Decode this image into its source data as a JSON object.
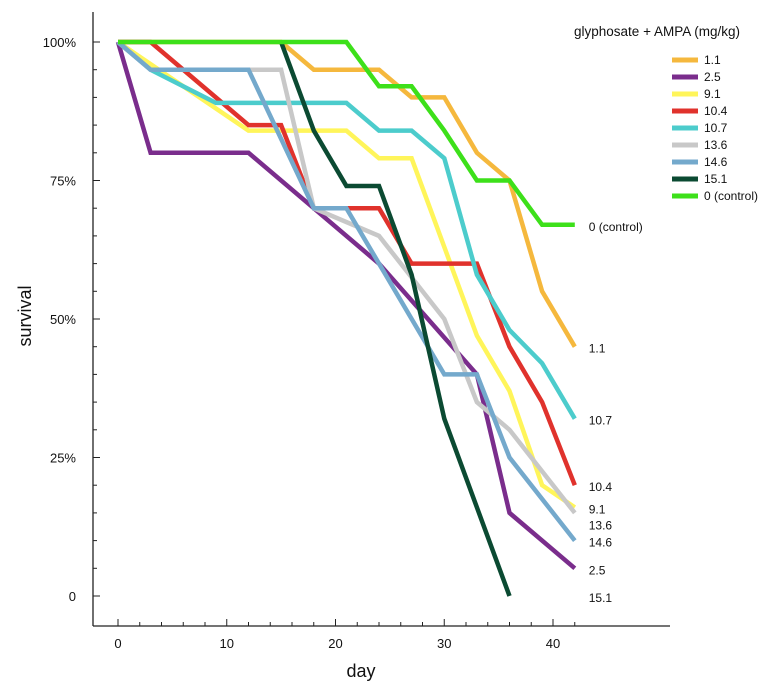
{
  "chart_data": {
    "type": "line",
    "xlabel": "day",
    "ylabel": "survival",
    "xlim": [
      -2.5,
      44.5
    ],
    "ylim": [
      0,
      104
    ],
    "x_ticks": [
      0,
      10,
      20,
      30,
      40
    ],
    "x_tick_labels": [
      "0",
      "10",
      "20",
      "30",
      "40"
    ],
    "y_ticks": [
      0,
      25,
      50,
      75,
      100
    ],
    "y_tick_labels": [
      "0",
      "25%",
      "50%",
      "75%",
      "100%"
    ],
    "legend_title": "glyphosate + AMPA (mg/kg)",
    "legend_position": "top-right",
    "grid": false,
    "series": [
      {
        "name": "1.1",
        "end_label": "1.1",
        "color": "#f5b83d",
        "x": [
          0,
          15,
          18,
          24,
          27,
          30,
          33,
          36,
          39,
          42
        ],
        "y": [
          100,
          100,
          95,
          95,
          90,
          90,
          80,
          75,
          55,
          45
        ]
      },
      {
        "name": "2.5",
        "end_label": "2.5",
        "color": "#7a2d8c",
        "x": [
          0,
          3,
          12,
          24,
          33,
          36,
          42
        ],
        "y": [
          100,
          80,
          80,
          60,
          40,
          15,
          5
        ]
      },
      {
        "name": "9.1",
        "end_label": "9.1",
        "color": "#fff55a",
        "x": [
          0,
          12,
          21,
          24,
          27,
          30,
          33,
          36,
          39,
          42
        ],
        "y": [
          100,
          84,
          84,
          79,
          79,
          63,
          47,
          37,
          20,
          16
        ]
      },
      {
        "name": "10.4",
        "end_label": "10.4",
        "color": "#e0322c",
        "x": [
          0,
          3,
          12,
          15,
          18,
          24,
          27,
          33,
          36,
          39,
          42
        ],
        "y": [
          100,
          100,
          85,
          85,
          70,
          70,
          60,
          60,
          45,
          35,
          20
        ]
      },
      {
        "name": "10.7",
        "end_label": "10.7",
        "color": "#4ccccc",
        "x": [
          0,
          3,
          9,
          21,
          24,
          27,
          30,
          33,
          36,
          39,
          42
        ],
        "y": [
          100,
          95,
          89,
          89,
          84,
          84,
          79,
          58,
          48,
          42,
          32
        ]
      },
      {
        "name": "13.6",
        "end_label": "13.6",
        "color": "#c8c8c8",
        "x": [
          0,
          3,
          15,
          18,
          24,
          30,
          33,
          36,
          42
        ],
        "y": [
          100,
          95,
          95,
          70,
          65,
          50,
          35,
          30,
          15
        ]
      },
      {
        "name": "14.6",
        "end_label": "14.6",
        "color": "#74a9cc",
        "x": [
          0,
          3,
          12,
          18,
          21,
          24,
          30,
          33,
          36,
          42
        ],
        "y": [
          100,
          95,
          95,
          70,
          70,
          60,
          40,
          40,
          25,
          10
        ]
      },
      {
        "name": "15.1",
        "end_label": "15.1",
        "color": "#0b4a32",
        "x": [
          15,
          18,
          21,
          24,
          27,
          30,
          33,
          36
        ],
        "y": [
          100,
          84,
          74,
          74,
          58,
          32,
          16,
          0
        ]
      },
      {
        "name": "0 (control)",
        "end_label": "0 (control)",
        "color": "#3de01a",
        "x": [
          0,
          21,
          24,
          27,
          30,
          33,
          36,
          39,
          42
        ],
        "y": [
          100,
          100,
          92,
          92,
          84,
          75,
          75,
          67,
          67
        ]
      }
    ]
  }
}
